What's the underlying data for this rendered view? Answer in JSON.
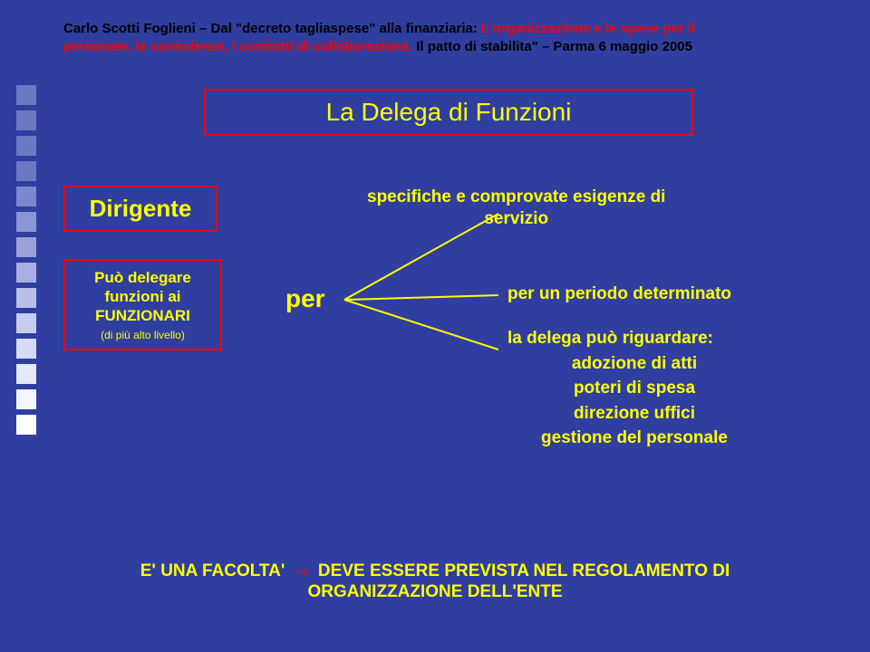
{
  "colors": {
    "slide_bg": "#2f3e9f",
    "text_main": "#ffff00",
    "header_accent": "#ff0000",
    "header_base": "#000000",
    "box_border": "#ff0000",
    "box_bg": "#2f3e9f",
    "square_colors": [
      "#6c78c4",
      "#6c78c4",
      "#6c78c4",
      "#6c78c4",
      "#7c87cc",
      "#8b95d3",
      "#9aa2da",
      "#a9b0e1",
      "#b8bee8",
      "#c7ccee",
      "#d6daf4",
      "#e5e7fa",
      "#f3f4fd",
      "#ffffff"
    ]
  },
  "header": {
    "line1_a": "Carlo Scotti Foglieni – Dal \"decreto tagliaspese\" alla finanziaria: ",
    "line1_b": "L'organizzazione e le spese per il",
    "line2_a": "personale, le consulenze, i contratti di collaborazione.",
    "line2_b": " Il patto di stabilita\" – Parma 6 maggio 2005"
  },
  "title": "La Delega di Funzioni",
  "dirigente": "Dirigente",
  "spec_l1": "specifiche e comprovate esigenze di",
  "spec_l2": "servizio",
  "funz_l1": "Può delegare",
  "funz_l2": "funzioni ai",
  "funz_l3": "FUNZIONARI",
  "funz_sub": "(di più alto livello)",
  "per": "per",
  "right_1": "per un periodo determinato",
  "right_2": "la delega può riguardare:",
  "right_3": "adozione di atti",
  "right_4": "poteri di spesa",
  "right_5": "direzione uffici",
  "right_6": "gestione del personale",
  "footer_a": "E' UNA FACOLTA",
  "footer_b": "'",
  "footer_c": " DEVE ESSERE PREVISTA NEL REGOLAMENTO DI",
  "footer_d": "ORGANIZZAZIONE DELL'ENTE",
  "arrow": "→",
  "borders": {
    "box_border_width": 2
  },
  "fonts": {
    "title_size": 28,
    "body_size": 19
  }
}
